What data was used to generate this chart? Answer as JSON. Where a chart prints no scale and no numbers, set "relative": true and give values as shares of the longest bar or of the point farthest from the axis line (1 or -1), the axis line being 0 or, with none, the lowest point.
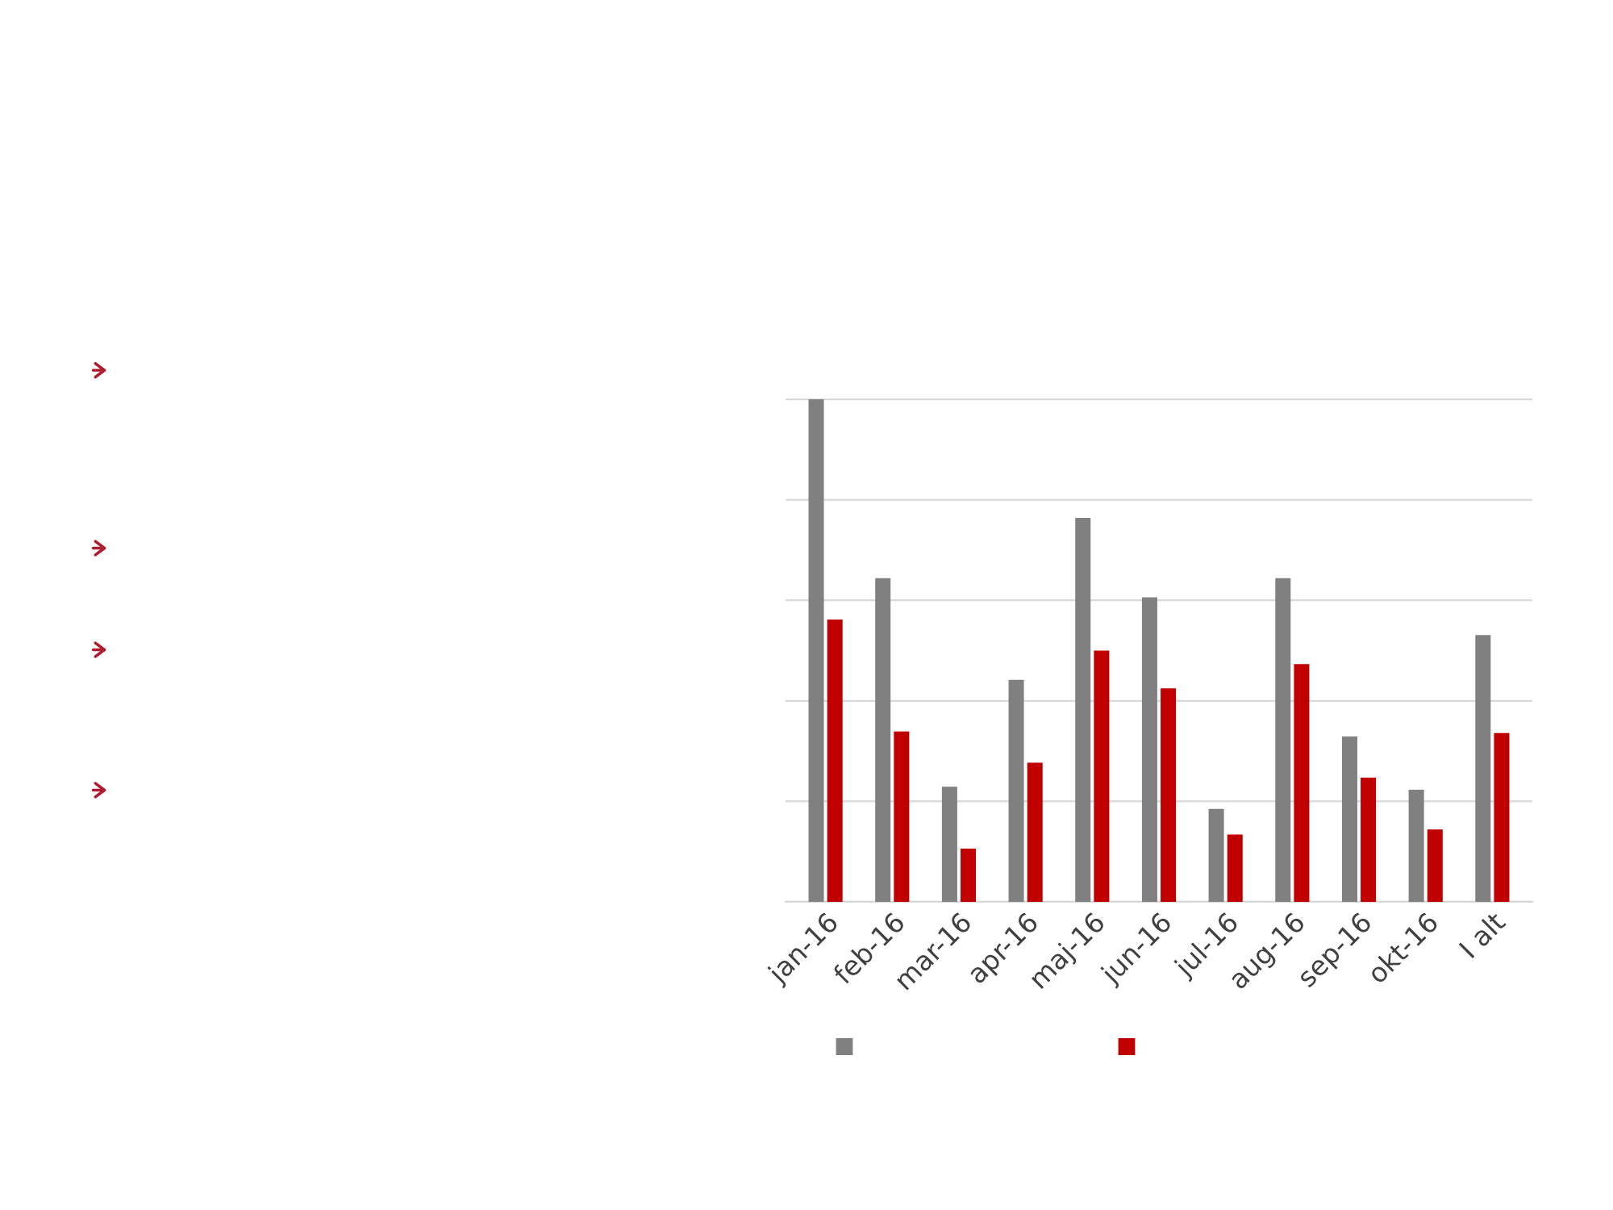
{
  "chart_data": {
    "type": "bar",
    "relative": true,
    "categories": [
      "jan-16",
      "feb-16",
      "mar-16",
      "apr-16",
      "maj-16",
      "jun-16",
      "jul-16",
      "aug-16",
      "sep-16",
      "okt-16",
      "I alt"
    ],
    "series": [
      {
        "color": "#808080",
        "values": [
          1,
          0.644,
          0.229,
          0.442,
          0.764,
          0.606,
          0.185,
          0.644,
          0.329,
          0.223,
          0.531
        ]
      },
      {
        "color": "#c00000",
        "values": [
          0.562,
          0.339,
          0.106,
          0.277,
          0.5,
          0.425,
          0.134,
          0.473,
          0.247,
          0.144,
          0.336
        ]
      }
    ],
    "grid": "y"
  }
}
